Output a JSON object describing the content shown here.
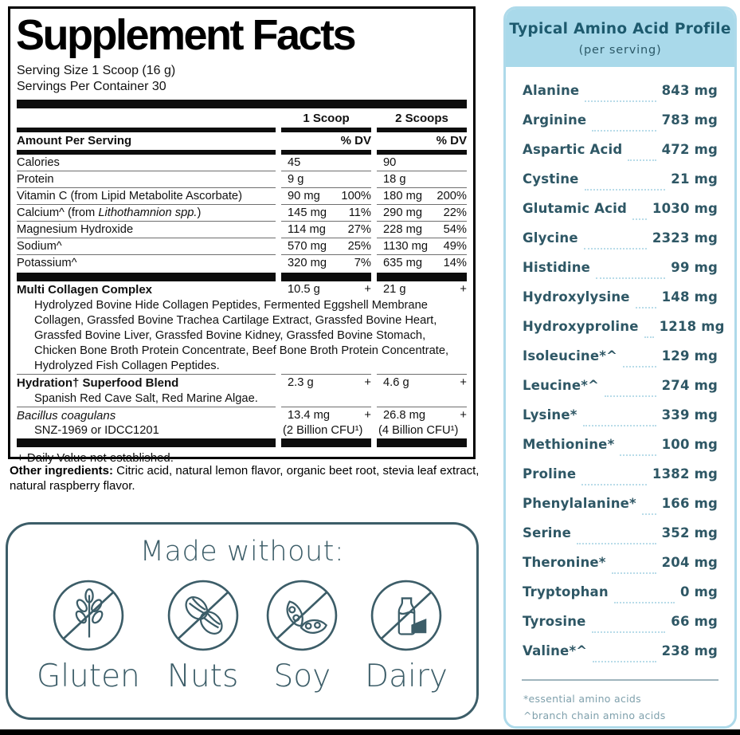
{
  "supplement_facts": {
    "title": "Supplement Facts",
    "serving_size": "Serving Size 1 Scoop (16 g)",
    "servings_per_container": "Servings Per Container 30",
    "col1_header": "1 Scoop",
    "col2_header": "2 Scoops",
    "amount_per_serving_label": "Amount Per Serving",
    "dv_label": "% DV",
    "rows": [
      {
        "label": "Calories",
        "c1": "45",
        "c1dv": "",
        "c2": "90",
        "c2dv": ""
      },
      {
        "label": "Protein",
        "c1": "9 g",
        "c1dv": "",
        "c2": "18 g",
        "c2dv": ""
      },
      {
        "label": "Vitamin C (from Lipid Metabolite Ascorbate)",
        "c1": "90 mg",
        "c1dv": "100%",
        "c2": "180 mg",
        "c2dv": "200%"
      },
      {
        "label": "Calcium^ (from ",
        "label_italic": "Lithothamnion spp.",
        "label_post": ")",
        "c1": "145 mg",
        "c1dv": "11%",
        "c2": "290 mg",
        "c2dv": "22%"
      },
      {
        "label": "Magnesium Hydroxide",
        "c1": "114 mg",
        "c1dv": "27%",
        "c2": "228 mg",
        "c2dv": "54%"
      },
      {
        "label": "Sodium^",
        "c1": "570 mg",
        "c1dv": "25%",
        "c2": "1130 mg",
        "c2dv": "49%"
      },
      {
        "label": "Potassium^",
        "c1": "320 mg",
        "c1dv": "7%",
        "c2": "635 mg",
        "c2dv": "14%"
      }
    ],
    "blends": [
      {
        "label": "Multi Collagen Complex",
        "c1": "10.5 g",
        "c1plus": "+",
        "c2": "21 g",
        "c2plus": "+",
        "desc": "Hydrolyzed Bovine Hide Collagen Peptides, Fermented Eggshell Membrane Collagen, Grassfed Bovine Trachea Cartilage Extract, Grassfed Bovine Heart, Grassfed Bovine Liver, Grassfed Bovine Kidney, Grassfed Bovine Stomach, Chicken Bone Broth Protein Concentrate, Beef Bone Broth Protein Concentrate, Hydrolyzed Fish Collagen Peptides."
      },
      {
        "label": "Hydration† Superfood Blend",
        "c1": "2.3 g",
        "c1plus": "+",
        "c2": "4.6 g",
        "c2plus": "+",
        "desc": "Spanish Red Cave Salt, Red Marine Algae."
      },
      {
        "label_italic": "Bacillus coagulans",
        "sub": "SNZ-1969 or IDCC1201",
        "c1": "13.4 mg",
        "c1plus": "+",
        "c1sub": "(2 Billion CFU¹)",
        "c2": "26.8 mg",
        "c2plus": "+",
        "c2sub": "(4 Billion CFU¹)"
      }
    ],
    "footnote": "+ Daily Value not established."
  },
  "other_ingredients": {
    "label": "Other ingredients:",
    "text": " Citric acid, natural lemon flavor, organic beet root, stevia leaf extract, natural raspberry flavor."
  },
  "made_without": {
    "title": "Made without:",
    "items": [
      {
        "label": "Gluten",
        "icon": "no-gluten-icon"
      },
      {
        "label": "Nuts",
        "icon": "no-nuts-icon"
      },
      {
        "label": "Soy",
        "icon": "no-soy-icon"
      },
      {
        "label": "Dairy",
        "icon": "no-dairy-icon"
      }
    ]
  },
  "amino_profile": {
    "title": "Typical Amino Acid Profile",
    "subtitle": "(per serving)",
    "rows": [
      {
        "name": "Alanine",
        "value": "843 mg"
      },
      {
        "name": "Arginine",
        "value": "783 mg"
      },
      {
        "name": "Aspartic Acid",
        "value": "472 mg"
      },
      {
        "name": "Cystine",
        "value": "21 mg"
      },
      {
        "name": "Glutamic Acid",
        "value": "1030 mg"
      },
      {
        "name": "Glycine",
        "value": "2323 mg"
      },
      {
        "name": "Histidine",
        "value": "99 mg"
      },
      {
        "name": "Hydroxylysine",
        "value": "148 mg"
      },
      {
        "name": "Hydroxyproline",
        "value": "1218 mg"
      },
      {
        "name": "Isoleucine*^",
        "value": "129 mg"
      },
      {
        "name": "Leucine*^",
        "value": "274 mg"
      },
      {
        "name": "Lysine*",
        "value": "339 mg"
      },
      {
        "name": "Methionine*",
        "value": "100 mg"
      },
      {
        "name": "Proline",
        "value": "1382 mg"
      },
      {
        "name": "Phenylalanine*",
        "value": "166 mg"
      },
      {
        "name": "Serine",
        "value": "352 mg"
      },
      {
        "name": "Theronine*",
        "value": "204 mg"
      },
      {
        "name": "Tryptophan",
        "value": "0 mg"
      },
      {
        "name": "Tyrosine",
        "value": "66 mg"
      },
      {
        "name": "Valine*^",
        "value": "238 mg"
      }
    ],
    "footnotes": [
      "*essential amino acids",
      "^branch chain amino acids"
    ],
    "colors": {
      "header_bg": "#a9d9ea",
      "border": "#aedaea",
      "text": "#2e5765",
      "dots": "#b9dce9",
      "accent_teal": "#3c5d68"
    }
  }
}
